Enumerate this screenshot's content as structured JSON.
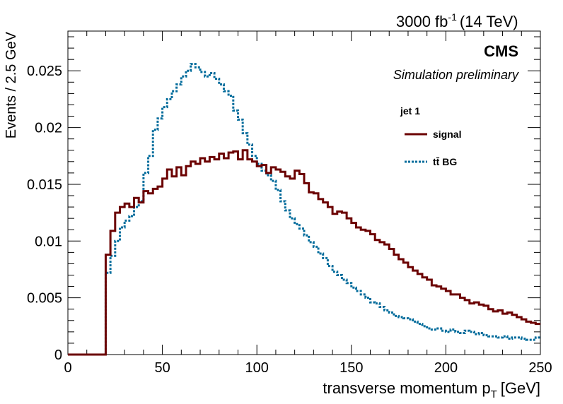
{
  "header": {
    "lumi_value": "3000 fb",
    "lumi_exp": "-1",
    "energy": "(14 TeV)"
  },
  "branding": {
    "experiment": "CMS",
    "status": "Simulation preliminary"
  },
  "legend": {
    "header": "jet 1",
    "entries": [
      "signal",
      "tt̄ BG"
    ]
  },
  "axes": {
    "xlabel_main": "transverse momentum p",
    "xlabel_sub": "T",
    "xlabel_unit": "[GeV]",
    "ylabel": "Events / 2.5 GeV"
  },
  "colors": {
    "signal": "#6b0000",
    "background": "#006b9b",
    "axis": "#000000"
  },
  "chart_data": {
    "type": "line",
    "style": "step-histogram",
    "xlim": [
      0,
      250
    ],
    "ylim": [
      0,
      0.0285
    ],
    "x_ticks": [
      0,
      50,
      100,
      150,
      200,
      250
    ],
    "x_tick_labels": [
      "0",
      "50",
      "100",
      "150",
      "200",
      "250"
    ],
    "y_ticks": [
      0,
      0.005,
      0.01,
      0.015,
      0.02,
      0.025
    ],
    "y_tick_labels": [
      "0",
      "0.005",
      "0.01",
      "0.015",
      "0.02",
      "0.025"
    ],
    "bin_width": 2.5,
    "x_start": 0,
    "grid": false,
    "legend_position": "top-right",
    "series": [
      {
        "name": "signal",
        "line": "solid",
        "values": [
          0,
          0,
          0,
          0,
          0,
          0,
          0,
          0,
          0.0088,
          0.0109,
          0.0125,
          0.013,
          0.0133,
          0.013,
          0.0138,
          0.0134,
          0.0144,
          0.0142,
          0.0146,
          0.0148,
          0.0155,
          0.0163,
          0.0157,
          0.0165,
          0.0158,
          0.0166,
          0.017,
          0.0168,
          0.0173,
          0.017,
          0.0174,
          0.0172,
          0.0177,
          0.0173,
          0.0178,
          0.0179,
          0.0172,
          0.018,
          0.0172,
          0.017,
          0.0166,
          0.0167,
          0.016,
          0.0165,
          0.0163,
          0.0161,
          0.0157,
          0.0155,
          0.0162,
          0.0159,
          0.0151,
          0.0143,
          0.0142,
          0.0137,
          0.0134,
          0.013,
          0.0124,
          0.0126,
          0.0125,
          0.012,
          0.0116,
          0.0112,
          0.011,
          0.0109,
          0.0106,
          0.0101,
          0.0099,
          0.0097,
          0.0093,
          0.0088,
          0.0084,
          0.0081,
          0.0077,
          0.0074,
          0.0071,
          0.0068,
          0.0066,
          0.0061,
          0.006,
          0.0058,
          0.0056,
          0.0053,
          0.0053,
          0.005,
          0.0048,
          0.0045,
          0.0046,
          0.0044,
          0.0043,
          0.004,
          0.0038,
          0.0039,
          0.0036,
          0.0037,
          0.0035,
          0.0033,
          0.0031,
          0.0029,
          0.0028,
          0.0027
        ]
      },
      {
        "name": "tt̄ BG",
        "line": "dotted",
        "values": [
          0,
          0,
          0,
          0,
          0,
          0,
          0,
          0,
          0.0072,
          0.0087,
          0.01,
          0.0112,
          0.0118,
          0.0122,
          0.013,
          0.0135,
          0.016,
          0.0175,
          0.0198,
          0.0208,
          0.0218,
          0.0225,
          0.0232,
          0.0238,
          0.0245,
          0.025,
          0.0256,
          0.0253,
          0.0249,
          0.0245,
          0.0248,
          0.0243,
          0.0238,
          0.0232,
          0.0228,
          0.0215,
          0.0207,
          0.0195,
          0.0185,
          0.0175,
          0.0168,
          0.0162,
          0.0158,
          0.0153,
          0.0145,
          0.0135,
          0.0127,
          0.012,
          0.0115,
          0.0111,
          0.0105,
          0.0099,
          0.0095,
          0.0089,
          0.0085,
          0.0078,
          0.0073,
          0.007,
          0.0066,
          0.0063,
          0.0059,
          0.0056,
          0.0053,
          0.005,
          0.0046,
          0.0045,
          0.0042,
          0.0039,
          0.0037,
          0.0034,
          0.0033,
          0.0032,
          0.0031,
          0.0029,
          0.0027,
          0.0025,
          0.0023,
          0.0022,
          0.0023,
          0.0021,
          0.002,
          0.0022,
          0.002,
          0.0019,
          0.0021,
          0.002,
          0.0018,
          0.0019,
          0.0017,
          0.0016,
          0.0016,
          0.0015,
          0.0016,
          0.0014,
          0.0015,
          0.0015,
          0.0014,
          0.0013,
          0.0013,
          0.0015
        ]
      }
    ]
  }
}
